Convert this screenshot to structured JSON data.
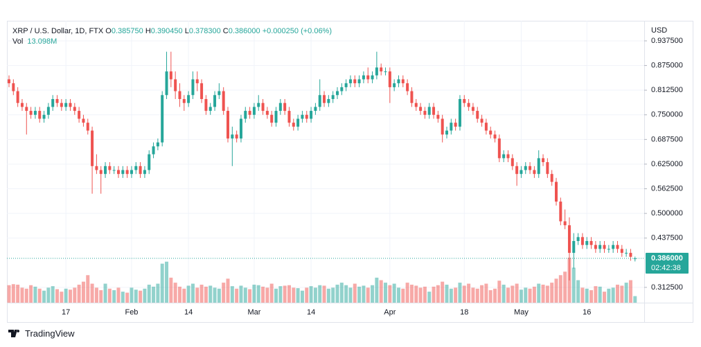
{
  "chart_data": {
    "type": "candlestick",
    "symbol": "XRP / U.S. Dollar, 1D, FTX",
    "ohlc_legend": [
      {
        "key": "O",
        "value": "0.385750"
      },
      {
        "key": "H",
        "value": "0.390450"
      },
      {
        "key": "L",
        "value": "0.378300"
      },
      {
        "key": "C",
        "value": "0.386000"
      }
    ],
    "change": "+0.000250 (+0.06%)",
    "volume_title": "Vol",
    "volume_label": "13.098M",
    "currency": "USD",
    "last_price_label": "0.386000",
    "countdown": "02:42:38",
    "up_color": "#26a69a",
    "down_color": "#ef5350",
    "grid": true,
    "ylim": [
      0.2737,
      0.9884
    ],
    "yticks": [
      {
        "value": 0.9375,
        "label": "0.937500"
      },
      {
        "value": 0.875,
        "label": "0.875000"
      },
      {
        "value": 0.8125,
        "label": "0.812500"
      },
      {
        "value": 0.75,
        "label": "0.750000"
      },
      {
        "value": 0.6875,
        "label": "0.687500"
      },
      {
        "value": 0.625,
        "label": "0.625000"
      },
      {
        "value": 0.5625,
        "label": "0.562500"
      },
      {
        "value": 0.5,
        "label": "0.500000"
      },
      {
        "value": 0.4375,
        "label": "0.437500"
      },
      {
        "value": 0.3125,
        "label": "0.312500"
      }
    ],
    "categories": [
      null,
      null,
      null,
      null,
      null,
      null,
      null,
      null,
      null,
      null,
      null,
      null,
      null,
      "17",
      null,
      null,
      null,
      null,
      null,
      null,
      null,
      null,
      null,
      null,
      null,
      null,
      null,
      null,
      "Feb",
      null,
      null,
      null,
      null,
      null,
      null,
      null,
      null,
      null,
      null,
      null,
      null,
      "14",
      null,
      null,
      null,
      null,
      null,
      null,
      null,
      null,
      null,
      null,
      null,
      null,
      null,
      null,
      "Mar",
      null,
      null,
      null,
      null,
      null,
      null,
      null,
      null,
      null,
      null,
      null,
      null,
      "14",
      null,
      null,
      null,
      null,
      null,
      null,
      null,
      null,
      null,
      null,
      null,
      null,
      null,
      null,
      null,
      null,
      null,
      "Apr",
      null,
      null,
      null,
      null,
      null,
      null,
      null,
      null,
      null,
      null,
      null,
      null,
      null,
      null,
      null,
      null,
      "18",
      null,
      null,
      null,
      null,
      null,
      null,
      null,
      null,
      null,
      null,
      null,
      null,
      "May",
      null,
      null,
      null,
      null,
      null,
      null,
      null,
      null,
      null,
      null,
      null,
      null,
      null,
      null,
      "16",
      null,
      null,
      null,
      null,
      null,
      null,
      null,
      null,
      null,
      null,
      null
    ],
    "open": [
      0.84,
      0.83,
      0.81,
      0.78,
      0.77,
      0.76,
      0.75,
      0.76,
      0.74,
      0.75,
      0.77,
      0.79,
      0.78,
      0.77,
      0.78,
      0.77,
      0.76,
      0.74,
      0.73,
      0.71,
      0.62,
      0.61,
      0.6,
      0.62,
      0.61,
      0.61,
      0.6,
      0.61,
      0.6,
      0.61,
      0.62,
      0.6,
      0.61,
      0.65,
      0.67,
      0.68,
      0.8,
      0.86,
      0.84,
      0.81,
      0.79,
      0.78,
      0.8,
      0.84,
      0.83,
      0.79,
      0.76,
      0.77,
      0.8,
      0.81,
      0.76,
      0.69,
      0.7,
      0.69,
      0.74,
      0.76,
      0.75,
      0.77,
      0.78,
      0.76,
      0.75,
      0.73,
      0.76,
      0.78,
      0.76,
      0.73,
      0.72,
      0.74,
      0.75,
      0.74,
      0.76,
      0.77,
      0.8,
      0.78,
      0.79,
      0.8,
      0.81,
      0.82,
      0.83,
      0.84,
      0.83,
      0.84,
      0.85,
      0.84,
      0.85,
      0.87,
      0.86,
      0.86,
      0.82,
      0.83,
      0.84,
      0.83,
      0.81,
      0.78,
      0.77,
      0.76,
      0.75,
      0.77,
      0.75,
      0.74,
      0.7,
      0.71,
      0.73,
      0.72,
      0.79,
      0.78,
      0.77,
      0.76,
      0.74,
      0.73,
      0.71,
      0.7,
      0.69,
      0.64,
      0.65,
      0.64,
      0.62,
      0.6,
      0.61,
      0.62,
      0.61,
      0.6,
      0.64,
      0.63,
      0.6,
      0.58,
      0.53,
      0.48,
      0.47,
      0.4,
      0.43,
      0.44,
      0.42,
      0.43,
      0.42,
      0.41,
      0.42,
      0.41,
      0.41,
      0.42,
      0.41,
      0.4,
      0.4,
      0.38575
    ],
    "high": [
      0.85,
      0.84,
      0.82,
      0.79,
      0.78,
      0.77,
      0.77,
      0.77,
      0.76,
      0.78,
      0.8,
      0.8,
      0.79,
      0.79,
      0.79,
      0.78,
      0.77,
      0.75,
      0.74,
      0.72,
      0.65,
      0.62,
      0.63,
      0.63,
      0.62,
      0.62,
      0.62,
      0.62,
      0.62,
      0.63,
      0.63,
      0.62,
      0.66,
      0.68,
      0.69,
      0.81,
      0.91,
      0.91,
      0.86,
      0.83,
      0.8,
      0.81,
      0.86,
      0.86,
      0.84,
      0.8,
      0.78,
      0.81,
      0.83,
      0.82,
      0.77,
      0.72,
      0.71,
      0.75,
      0.77,
      0.77,
      0.78,
      0.8,
      0.79,
      0.77,
      0.76,
      0.77,
      0.79,
      0.79,
      0.77,
      0.74,
      0.75,
      0.76,
      0.76,
      0.77,
      0.78,
      0.84,
      0.81,
      0.8,
      0.81,
      0.82,
      0.83,
      0.84,
      0.85,
      0.85,
      0.85,
      0.86,
      0.87,
      0.86,
      0.91,
      0.88,
      0.87,
      0.87,
      0.84,
      0.85,
      0.85,
      0.84,
      0.82,
      0.79,
      0.78,
      0.77,
      0.78,
      0.78,
      0.76,
      0.75,
      0.72,
      0.74,
      0.74,
      0.8,
      0.8,
      0.79,
      0.78,
      0.77,
      0.75,
      0.74,
      0.72,
      0.71,
      0.7,
      0.66,
      0.66,
      0.65,
      0.63,
      0.62,
      0.63,
      0.63,
      0.62,
      0.66,
      0.65,
      0.64,
      0.61,
      0.59,
      0.54,
      0.51,
      0.49,
      0.45,
      0.45,
      0.45,
      0.44,
      0.44,
      0.43,
      0.43,
      0.43,
      0.42,
      0.43,
      0.43,
      0.42,
      0.41,
      0.41,
      0.39045
    ],
    "low": [
      0.82,
      0.8,
      0.77,
      0.76,
      0.7,
      0.74,
      0.74,
      0.73,
      0.73,
      0.74,
      0.76,
      0.77,
      0.76,
      0.76,
      0.76,
      0.75,
      0.73,
      0.72,
      0.7,
      0.55,
      0.6,
      0.55,
      0.59,
      0.6,
      0.6,
      0.59,
      0.59,
      0.59,
      0.59,
      0.6,
      0.59,
      0.59,
      0.6,
      0.64,
      0.66,
      0.67,
      0.79,
      0.82,
      0.79,
      0.77,
      0.76,
      0.77,
      0.79,
      0.81,
      0.78,
      0.75,
      0.75,
      0.76,
      0.79,
      0.75,
      0.68,
      0.62,
      0.68,
      0.68,
      0.73,
      0.74,
      0.74,
      0.76,
      0.75,
      0.74,
      0.72,
      0.72,
      0.75,
      0.75,
      0.72,
      0.71,
      0.71,
      0.73,
      0.73,
      0.73,
      0.75,
      0.76,
      0.77,
      0.77,
      0.78,
      0.79,
      0.8,
      0.81,
      0.82,
      0.82,
      0.82,
      0.83,
      0.83,
      0.83,
      0.84,
      0.85,
      0.85,
      0.78,
      0.81,
      0.82,
      0.82,
      0.8,
      0.77,
      0.76,
      0.75,
      0.74,
      0.74,
      0.74,
      0.73,
      0.68,
      0.69,
      0.7,
      0.71,
      0.71,
      0.77,
      0.76,
      0.75,
      0.73,
      0.72,
      0.7,
      0.69,
      0.68,
      0.63,
      0.63,
      0.63,
      0.61,
      0.57,
      0.59,
      0.6,
      0.6,
      0.59,
      0.59,
      0.62,
      0.59,
      0.57,
      0.52,
      0.47,
      0.46,
      0.33,
      0.36,
      0.42,
      0.41,
      0.41,
      0.41,
      0.4,
      0.4,
      0.4,
      0.4,
      0.4,
      0.4,
      0.39,
      0.39,
      0.38,
      0.3783
    ],
    "close": [
      0.83,
      0.81,
      0.78,
      0.77,
      0.76,
      0.75,
      0.76,
      0.74,
      0.75,
      0.77,
      0.79,
      0.78,
      0.77,
      0.78,
      0.77,
      0.76,
      0.74,
      0.73,
      0.71,
      0.62,
      0.61,
      0.6,
      0.62,
      0.61,
      0.61,
      0.6,
      0.61,
      0.6,
      0.61,
      0.62,
      0.6,
      0.61,
      0.65,
      0.67,
      0.68,
      0.8,
      0.86,
      0.84,
      0.81,
      0.79,
      0.78,
      0.8,
      0.84,
      0.83,
      0.79,
      0.76,
      0.77,
      0.8,
      0.81,
      0.76,
      0.69,
      0.7,
      0.69,
      0.74,
      0.76,
      0.75,
      0.77,
      0.78,
      0.76,
      0.75,
      0.73,
      0.76,
      0.78,
      0.76,
      0.73,
      0.72,
      0.74,
      0.75,
      0.74,
      0.76,
      0.77,
      0.8,
      0.78,
      0.79,
      0.8,
      0.81,
      0.82,
      0.83,
      0.84,
      0.83,
      0.84,
      0.85,
      0.84,
      0.85,
      0.87,
      0.86,
      0.86,
      0.82,
      0.83,
      0.84,
      0.83,
      0.81,
      0.78,
      0.77,
      0.76,
      0.75,
      0.77,
      0.75,
      0.74,
      0.7,
      0.71,
      0.73,
      0.72,
      0.79,
      0.78,
      0.77,
      0.76,
      0.74,
      0.73,
      0.71,
      0.7,
      0.69,
      0.64,
      0.65,
      0.64,
      0.62,
      0.6,
      0.61,
      0.62,
      0.61,
      0.6,
      0.64,
      0.63,
      0.6,
      0.58,
      0.53,
      0.48,
      0.47,
      0.4,
      0.43,
      0.44,
      0.42,
      0.43,
      0.42,
      0.41,
      0.42,
      0.41,
      0.41,
      0.42,
      0.41,
      0.4,
      0.4,
      0.39,
      0.386
    ],
    "volume": [
      35,
      37,
      36,
      30,
      28,
      35,
      32,
      28,
      24,
      30,
      33,
      27,
      22,
      28,
      26,
      30,
      36,
      42,
      55,
      38,
      30,
      25,
      38,
      28,
      25,
      30,
      22,
      20,
      30,
      26,
      24,
      28,
      36,
      32,
      38,
      78,
      82,
      50,
      40,
      32,
      28,
      34,
      38,
      30,
      36,
      32,
      34,
      30,
      28,
      40,
      48,
      33,
      28,
      34,
      30,
      27,
      36,
      35,
      32,
      30,
      38,
      28,
      33,
      34,
      35,
      30,
      29,
      24,
      30,
      33,
      30,
      35,
      34,
      28,
      30,
      36,
      40,
      35,
      30,
      38,
      32,
      34,
      30,
      35,
      50,
      45,
      40,
      35,
      38,
      30,
      28,
      40,
      36,
      34,
      30,
      32,
      22,
      32,
      35,
      42,
      36,
      28,
      30,
      40,
      34,
      38,
      30,
      28,
      35,
      38,
      25,
      28,
      44,
      36,
      30,
      34,
      38,
      26,
      30,
      28,
      32,
      38,
      36,
      34,
      40,
      48,
      55,
      62,
      90,
      70,
      45,
      30,
      28,
      25,
      33,
      32,
      22,
      28,
      30,
      36,
      34,
      40,
      45,
      13.098
    ]
  },
  "footer": {
    "brand": "TradingView"
  }
}
